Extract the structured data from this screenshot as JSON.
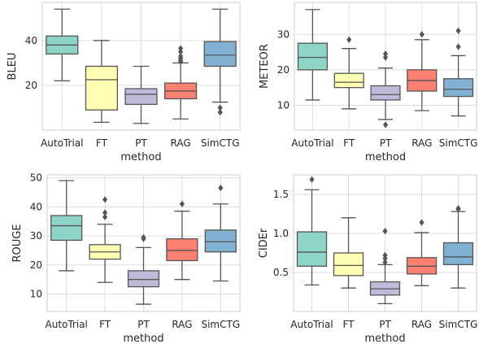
{
  "chart_data": [
    {
      "type": "box",
      "xlabel": "method",
      "ylabel": "BLEU",
      "categories": [
        "AutoTrial",
        "FT",
        "PT",
        "RAG",
        "SimCTG"
      ],
      "colors": [
        "#8dd3c7",
        "#ffffb3",
        "#bebada",
        "#fb8072",
        "#80b1d3"
      ],
      "ylim": [
        0,
        57
      ],
      "yticks": [
        20,
        40
      ],
      "ytick_labels": [
        "20",
        "40"
      ],
      "grid": true,
      "boxes": [
        {
          "whislo": 22,
          "q1": 34,
          "med": 38,
          "q3": 42,
          "whishi": 54,
          "fliers": []
        },
        {
          "whislo": 3.5,
          "q1": 9,
          "med": 22.5,
          "q3": 28.5,
          "whishi": 40,
          "fliers": []
        },
        {
          "whislo": 3,
          "q1": 11.5,
          "med": 16,
          "q3": 18.5,
          "whishi": 28.5,
          "fliers": []
        },
        {
          "whislo": 5,
          "q1": 14,
          "med": 17.5,
          "q3": 21,
          "whishi": 30,
          "fliers": [
            30.5,
            31,
            32,
            33,
            35,
            36.5
          ]
        },
        {
          "whislo": 12.5,
          "q1": 28.5,
          "med": 33.5,
          "q3": 39.5,
          "whishi": 54,
          "fliers": [
            8,
            10
          ]
        }
      ]
    },
    {
      "type": "box",
      "xlabel": "method",
      "ylabel": "METEOR",
      "categories": [
        "AutoTrial",
        "FT",
        "PT",
        "RAG",
        "SimCTG"
      ],
      "colors": [
        "#8dd3c7",
        "#ffffb3",
        "#bebada",
        "#fb8072",
        "#80b1d3"
      ],
      "ylim": [
        3,
        39
      ],
      "yticks": [
        10,
        20,
        30
      ],
      "ytick_labels": [
        "10",
        "20",
        "30"
      ],
      "grid": true,
      "boxes": [
        {
          "whislo": 11.5,
          "q1": 20,
          "med": 23.5,
          "q3": 27.5,
          "whishi": 37,
          "fliers": []
        },
        {
          "whislo": 9,
          "q1": 15,
          "med": 16.5,
          "q3": 19,
          "whishi": 26,
          "fliers": [
            28.5
          ]
        },
        {
          "whislo": 6,
          "q1": 11.5,
          "med": 13,
          "q3": 15.5,
          "whishi": 20.5,
          "fliers": [
            4.5,
            23.5,
            24.5
          ]
        },
        {
          "whislo": 8.5,
          "q1": 14,
          "med": 17,
          "q3": 20,
          "whishi": 28.5,
          "fliers": [
            30
          ]
        },
        {
          "whislo": 7,
          "q1": 12.5,
          "med": 14.5,
          "q3": 17.5,
          "whishi": 24,
          "fliers": [
            26.5,
            31
          ]
        }
      ]
    },
    {
      "type": "box",
      "xlabel": "method",
      "ylabel": "ROUGE",
      "categories": [
        "AutoTrial",
        "FT",
        "PT",
        "RAG",
        "SimCTG"
      ],
      "colors": [
        "#8dd3c7",
        "#ffffb3",
        "#bebada",
        "#fb8072",
        "#80b1d3"
      ],
      "ylim": [
        4,
        51
      ],
      "yticks": [
        10,
        20,
        30,
        40,
        50
      ],
      "ytick_labels": [
        "10",
        "20",
        "30",
        "40",
        "50"
      ],
      "grid": true,
      "boxes": [
        {
          "whislo": 18,
          "q1": 28.5,
          "med": 33.5,
          "q3": 37,
          "whishi": 49,
          "fliers": []
        },
        {
          "whislo": 14,
          "q1": 22,
          "med": 24.5,
          "q3": 27,
          "whishi": 34,
          "fliers": [
            36.5,
            38,
            42.5
          ]
        },
        {
          "whislo": 6.5,
          "q1": 12.5,
          "med": 15,
          "q3": 18,
          "whishi": 26,
          "fliers": [
            29,
            29.5
          ]
        },
        {
          "whislo": 15,
          "q1": 21.5,
          "med": 25,
          "q3": 29,
          "whishi": 38.5,
          "fliers": [
            41
          ]
        },
        {
          "whislo": 14.5,
          "q1": 24.5,
          "med": 28,
          "q3": 32,
          "whishi": 41,
          "fliers": [
            46.5
          ]
        }
      ]
    },
    {
      "type": "box",
      "xlabel": "method",
      "ylabel": "CIDEr",
      "categories": [
        "AutoTrial",
        "FT",
        "PT",
        "RAG",
        "SimCTG"
      ],
      "colors": [
        "#8dd3c7",
        "#ffffb3",
        "#bebada",
        "#fb8072",
        "#80b1d3"
      ],
      "ylim": [
        0.0,
        1.75
      ],
      "yticks": [
        0.5,
        1.0,
        1.5
      ],
      "ytick_labels": [
        "0.5",
        "1.0",
        "1.5"
      ],
      "grid": true,
      "boxes": [
        {
          "whislo": 0.34,
          "q1": 0.58,
          "med": 0.76,
          "q3": 1.02,
          "whishi": 1.56,
          "fliers": [
            1.69
          ]
        },
        {
          "whislo": 0.3,
          "q1": 0.46,
          "med": 0.59,
          "q3": 0.75,
          "whishi": 1.2,
          "fliers": []
        },
        {
          "whislo": 0.1,
          "q1": 0.21,
          "med": 0.29,
          "q3": 0.38,
          "whishi": 0.6,
          "fliers": [
            0.63,
            0.68,
            0.72,
            1.03
          ]
        },
        {
          "whislo": 0.33,
          "q1": 0.48,
          "med": 0.58,
          "q3": 0.69,
          "whishi": 1.01,
          "fliers": [
            1.14
          ]
        },
        {
          "whislo": 0.3,
          "q1": 0.6,
          "med": 0.7,
          "q3": 0.88,
          "whishi": 1.28,
          "fliers": [
            1.31,
            1.32
          ]
        }
      ]
    }
  ]
}
